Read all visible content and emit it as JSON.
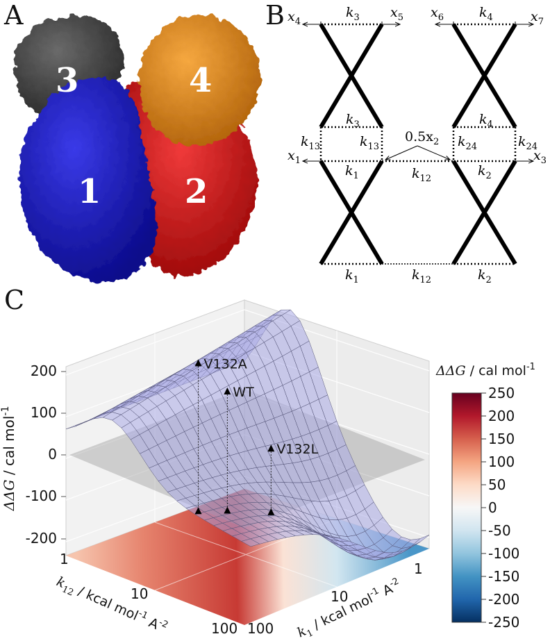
{
  "panels": {
    "a": "A",
    "b": "B",
    "c": "C"
  },
  "panel_a": {
    "subunits": [
      {
        "label": "1",
        "color": "#1f1fc4"
      },
      {
        "label": "2",
        "color": "#de1212"
      },
      {
        "label": "3",
        "color": "#4a4a4a"
      },
      {
        "label": "4",
        "color": "#e88d1c"
      }
    ]
  },
  "panel_b": {
    "k3": "k",
    "k3_sub": "3",
    "k4": "k",
    "k4_sub": "4",
    "k13": "k",
    "k13_sub": "13",
    "k24": "k",
    "k24_sub": "24",
    "k1": "k",
    "k1_sub": "1",
    "k2": "k",
    "k2_sub": "2",
    "k12": "k",
    "k12_sub": "12",
    "x1": "x",
    "x1_sub": "1",
    "x3": "x",
    "x3_sub": "3",
    "x4": "x",
    "x4_sub": "4",
    "x5": "x",
    "x5_sub": "5",
    "x6": "x",
    "x6_sub": "6",
    "x7": "x",
    "x7_sub": "7",
    "x2_half": "0.5x",
    "x2_sub": "2"
  },
  "chart_data": {
    "type": "surface3d",
    "zlabel_main": "ΔΔG",
    "zlabel_unit": " / cal mol",
    "zlabel_exp": "-1",
    "z_ticks": [
      "200",
      "100",
      "0",
      "-100",
      "-200"
    ],
    "zlim": [
      -230,
      230
    ],
    "x_axis": {
      "label_sym": "k",
      "label_sub": "1",
      "label_unit": " / kcal mol",
      "label_exp1": "-1",
      "label_tail": " A",
      "label_exp2": "-2",
      "ticks": [
        "1",
        "10",
        "100"
      ],
      "scale": "log"
    },
    "y_axis": {
      "label_sym": "k",
      "label_sub": "12",
      "label_unit": " / kcal mol",
      "label_exp1": "-1",
      "label_tail": " A",
      "label_exp2": "-2",
      "ticks": [
        "1",
        "10",
        "100"
      ],
      "scale": "log"
    },
    "points": [
      {
        "name": "V132A",
        "ddg": 130
      },
      {
        "name": "WT",
        "ddg": 60
      },
      {
        "name": "V132L",
        "ddg": -75
      }
    ],
    "colorbar": {
      "title_main": "ΔΔG",
      "title_unit": " / cal mol",
      "title_exp": "-1",
      "ticks": [
        "250",
        "200",
        "150",
        "100",
        "50",
        "0",
        "-50",
        "-100",
        "-150",
        "-200",
        "-250"
      ],
      "range": [
        -250,
        250
      ],
      "colors": [
        "#67001f",
        "#b2182b",
        "#d6604d",
        "#f4a582",
        "#fddbc7",
        "#f7f7f7",
        "#d1e5f0",
        "#92c5de",
        "#4393c3",
        "#2166ac",
        "#053061"
      ]
    }
  }
}
